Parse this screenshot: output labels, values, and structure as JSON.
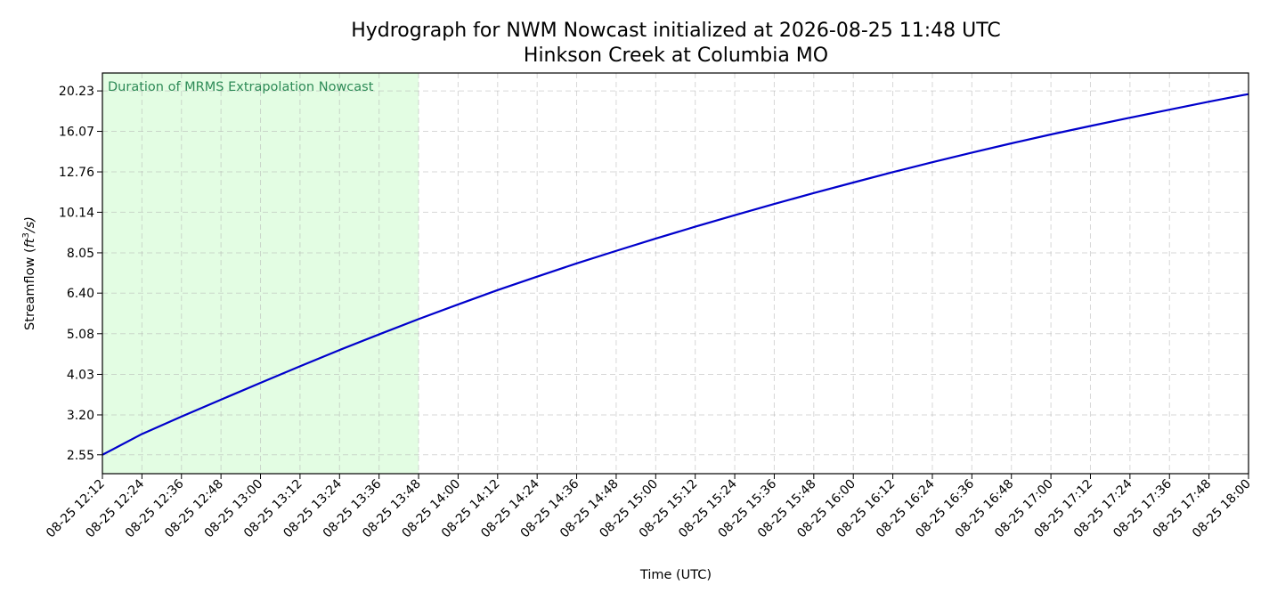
{
  "chart_data": {
    "type": "line",
    "title": "Hydrograph for NWM Nowcast initialized at 2026-08-25 11:48 UTC",
    "subtitle": "Hinkson Creek at Columbia MO",
    "xlabel": "Time (UTC)",
    "ylabel_prefix": "Streamflow (",
    "ylabel_unit_base": "ft",
    "ylabel_unit_exp": "3",
    "ylabel_unit_tail": "/s)",
    "y_scale": "log",
    "xlim": [
      "2026-08-25 12:12",
      "2026-08-25 18:00"
    ],
    "ylim": [
      2.29,
      22.4
    ],
    "grid": true,
    "line_color": "#0000cc",
    "shade_color": "#e3fde3",
    "annotation_color": "#2e8b57",
    "shaded_region": {
      "start": "2026-08-25 12:12",
      "end": "2026-08-25 13:48",
      "label": "Duration of MRMS Extrapolation Nowcast"
    },
    "x_ticks": [
      {
        "t": "2026-08-25 12:12",
        "label": "08-25 12:12"
      },
      {
        "t": "2026-08-25 12:24",
        "label": "08-25 12:24"
      },
      {
        "t": "2026-08-25 12:36",
        "label": "08-25 12:36"
      },
      {
        "t": "2026-08-25 12:48",
        "label": "08-25 12:48"
      },
      {
        "t": "2026-08-25 13:00",
        "label": "08-25 13:00"
      },
      {
        "t": "2026-08-25 13:12",
        "label": "08-25 13:12"
      },
      {
        "t": "2026-08-25 13:24",
        "label": "08-25 13:24"
      },
      {
        "t": "2026-08-25 13:36",
        "label": "08-25 13:36"
      },
      {
        "t": "2026-08-25 13:48",
        "label": "08-25 13:48"
      },
      {
        "t": "2026-08-25 14:00",
        "label": "08-25 14:00"
      },
      {
        "t": "2026-08-25 14:12",
        "label": "08-25 14:12"
      },
      {
        "t": "2026-08-25 14:24",
        "label": "08-25 14:24"
      },
      {
        "t": "2026-08-25 14:36",
        "label": "08-25 14:36"
      },
      {
        "t": "2026-08-25 14:48",
        "label": "08-25 14:48"
      },
      {
        "t": "2026-08-25 15:00",
        "label": "08-25 15:00"
      },
      {
        "t": "2026-08-25 15:12",
        "label": "08-25 15:12"
      },
      {
        "t": "2026-08-25 15:24",
        "label": "08-25 15:24"
      },
      {
        "t": "2026-08-25 15:36",
        "label": "08-25 15:36"
      },
      {
        "t": "2026-08-25 15:48",
        "label": "08-25 15:48"
      },
      {
        "t": "2026-08-25 16:00",
        "label": "08-25 16:00"
      },
      {
        "t": "2026-08-25 16:12",
        "label": "08-25 16:12"
      },
      {
        "t": "2026-08-25 16:24",
        "label": "08-25 16:24"
      },
      {
        "t": "2026-08-25 16:36",
        "label": "08-25 16:36"
      },
      {
        "t": "2026-08-25 16:48",
        "label": "08-25 16:48"
      },
      {
        "t": "2026-08-25 17:00",
        "label": "08-25 17:00"
      },
      {
        "t": "2026-08-25 17:12",
        "label": "08-25 17:12"
      },
      {
        "t": "2026-08-25 17:24",
        "label": "08-25 17:24"
      },
      {
        "t": "2026-08-25 17:36",
        "label": "08-25 17:36"
      },
      {
        "t": "2026-08-25 17:48",
        "label": "08-25 17:48"
      },
      {
        "t": "2026-08-25 18:00",
        "label": "08-25 18:00"
      }
    ],
    "y_ticks": [
      2.55,
      3.2,
      4.03,
      5.08,
      6.4,
      8.05,
      10.14,
      12.76,
      16.07,
      20.23
    ],
    "y_tick_labels": [
      "2.55",
      "3.20",
      "4.03",
      "5.08",
      "6.40",
      "8.05",
      "10.14",
      "12.76",
      "16.07",
      "20.23"
    ],
    "series": [
      {
        "color": "#0000cc",
        "points": [
          {
            "t": "2026-08-25 12:12",
            "y": 2.55
          },
          {
            "t": "2026-08-25 12:24",
            "y": 2.87
          },
          {
            "t": "2026-08-25 12:36",
            "y": 3.17
          },
          {
            "t": "2026-08-25 12:48",
            "y": 3.49
          },
          {
            "t": "2026-08-25 13:00",
            "y": 3.84
          },
          {
            "t": "2026-08-25 13:12",
            "y": 4.22
          },
          {
            "t": "2026-08-25 13:24",
            "y": 4.63
          },
          {
            "t": "2026-08-25 13:36",
            "y": 5.06
          },
          {
            "t": "2026-08-25 13:48",
            "y": 5.52
          },
          {
            "t": "2026-08-25 14:00",
            "y": 6.0
          },
          {
            "t": "2026-08-25 14:12",
            "y": 6.51
          },
          {
            "t": "2026-08-25 14:24",
            "y": 7.03
          },
          {
            "t": "2026-08-25 14:36",
            "y": 7.58
          },
          {
            "t": "2026-08-25 14:48",
            "y": 8.14
          },
          {
            "t": "2026-08-25 15:00",
            "y": 8.73
          },
          {
            "t": "2026-08-25 15:12",
            "y": 9.34
          },
          {
            "t": "2026-08-25 15:24",
            "y": 9.97
          },
          {
            "t": "2026-08-25 15:36",
            "y": 10.63
          },
          {
            "t": "2026-08-25 15:48",
            "y": 11.31
          },
          {
            "t": "2026-08-25 16:00",
            "y": 12.01
          },
          {
            "t": "2026-08-25 16:12",
            "y": 12.74
          },
          {
            "t": "2026-08-25 16:24",
            "y": 13.48
          },
          {
            "t": "2026-08-25 16:36",
            "y": 14.24
          },
          {
            "t": "2026-08-25 16:48",
            "y": 15.01
          },
          {
            "t": "2026-08-25 17:00",
            "y": 15.79
          },
          {
            "t": "2026-08-25 17:12",
            "y": 16.57
          },
          {
            "t": "2026-08-25 17:24",
            "y": 17.37
          },
          {
            "t": "2026-08-25 17:36",
            "y": 18.18
          },
          {
            "t": "2026-08-25 17:48",
            "y": 19.03
          },
          {
            "t": "2026-08-25 18:00",
            "y": 19.87
          }
        ]
      }
    ]
  }
}
